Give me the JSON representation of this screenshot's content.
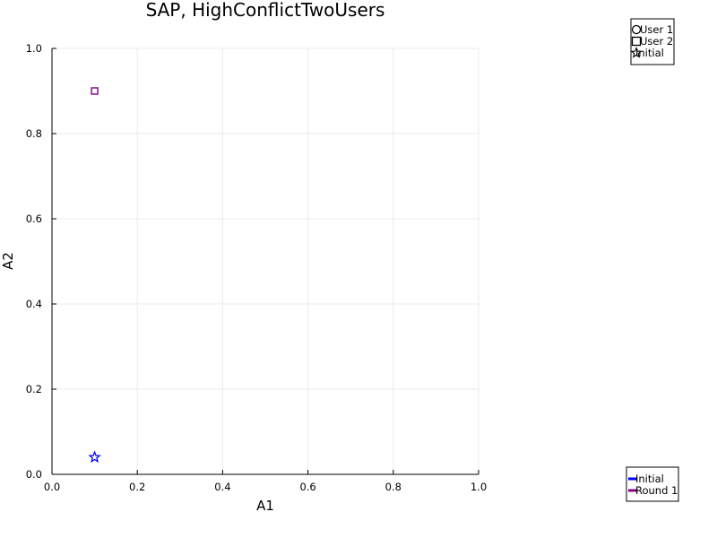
{
  "chart_data": {
    "type": "scatter",
    "title": "SAP, HighConflictTwoUsers",
    "xlabel": "A1",
    "ylabel": "A2",
    "xlim": [
      0,
      1
    ],
    "ylim": [
      0,
      1
    ],
    "xticks": [
      "0.0",
      "0.2",
      "0.4",
      "0.6",
      "0.8",
      "1.0"
    ],
    "yticks": [
      "0.0",
      "0.2",
      "0.4",
      "0.6",
      "0.8",
      "1.0"
    ],
    "grid": true,
    "series": [
      {
        "name": "Initial",
        "marker": "star",
        "color": "#0000ff",
        "points": [
          {
            "x": 0.1,
            "y": 0.04
          }
        ]
      },
      {
        "name": "Round 1",
        "marker": "square",
        "color": "#800080",
        "points": [
          {
            "x": 0.1,
            "y": 0.9
          }
        ]
      }
    ],
    "legend_markers": {
      "placement": "top-right",
      "entries": [
        {
          "label": "User 1",
          "marker": "circle"
        },
        {
          "label": "User 2",
          "marker": "square"
        },
        {
          "label": "Initial",
          "marker": "star"
        }
      ]
    },
    "legend_series": {
      "placement": "bottom-right",
      "entries": [
        {
          "label": "Initial",
          "color": "#0000ff"
        },
        {
          "label": "Round 1",
          "color": "#800080"
        }
      ]
    }
  }
}
